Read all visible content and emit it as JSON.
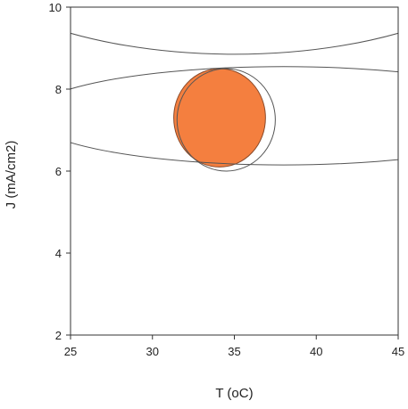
{
  "chart_data": {
    "type": "scatter",
    "title": "",
    "xlabel": "T (oC)",
    "ylabel": "J (mA/cm2)",
    "xlim": [
      25,
      45
    ],
    "ylim": [
      2,
      10
    ],
    "xticks": [
      25,
      30,
      35,
      40,
      45
    ],
    "yticks": [
      2,
      4,
      6,
      8,
      10
    ],
    "grid": false,
    "legend": "none",
    "regions": [
      {
        "kind": "ellipse-outline",
        "center": [
          35,
          11.9
        ],
        "radii": [
          18,
          3.05
        ]
      },
      {
        "kind": "ellipse-outline",
        "center": [
          38,
          7.35
        ],
        "radii": [
          15.5,
          1.2
        ]
      },
      {
        "kind": "circle-outline",
        "center": [
          34.5,
          7.25
        ],
        "radii": [
          3.0,
          1.25
        ]
      },
      {
        "kind": "filled-overlap",
        "center": [
          34.1,
          7.3
        ],
        "radii": [
          2.8,
          1.2
        ],
        "color": "#F47F3F"
      }
    ],
    "colors": {
      "fill": "#F47F3F",
      "outline": "#555555",
      "axis": "#333333"
    }
  }
}
